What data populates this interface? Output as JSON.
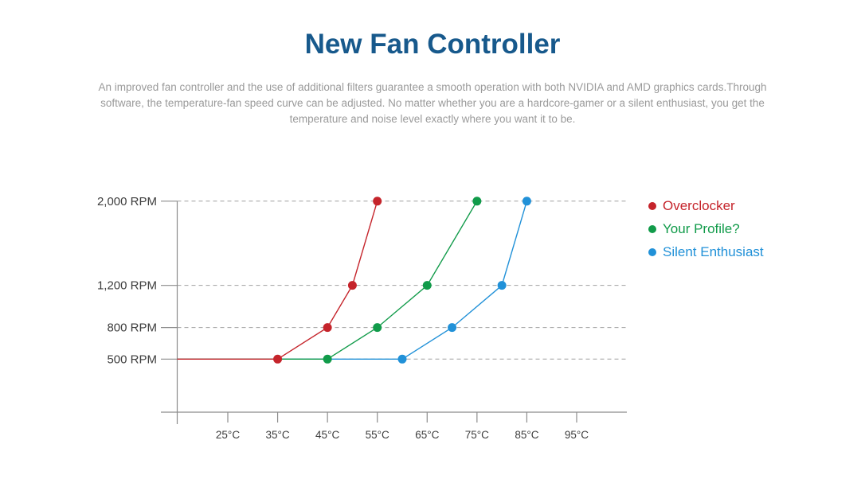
{
  "page": {
    "title": "New Fan Controller",
    "description_lines": [
      "An improved fan controller and the use of additional filters guarantee a smooth operation with both NVIDIA and AMD graphics cards.Through",
      "software, the temperature-fan speed curve can be adjusted. No matter whether you are a hardcore-gamer or a silent enthusiast, you get the",
      "temperature and noise level exactly where you want it to be."
    ]
  },
  "colors": {
    "title": "#17598c",
    "description": "#9a9a9a",
    "axis": "#8c8c8c",
    "grid": "#a0a0a0",
    "tick_label": "#3d3d3d"
  },
  "chart_data": {
    "type": "line",
    "title": "",
    "xlabel": "",
    "ylabel": "",
    "x_unit": "°C",
    "y_unit": "RPM",
    "x_tick_values": [
      25,
      35,
      45,
      55,
      65,
      75,
      85,
      95
    ],
    "x_tick_labels": [
      "25°C",
      "35°C",
      "45°C",
      "55°C",
      "65°C",
      "75°C",
      "85°C",
      "95°C"
    ],
    "y_tick_values": [
      2000,
      1200,
      800,
      500
    ],
    "y_tick_labels": [
      "2,000 RPM",
      "1,200 RPM",
      "800 RPM",
      "500 RPM"
    ],
    "ylim": [
      500,
      2000
    ],
    "grid": "horizontal-dashed",
    "baseline_rpm": 500,
    "legend_position": "right",
    "series": [
      {
        "name": "Overclocker",
        "color": "#c5242b",
        "points": [
          [
            35,
            500
          ],
          [
            45,
            800
          ],
          [
            50,
            1200
          ],
          [
            55,
            2000
          ]
        ]
      },
      {
        "name": "Your Profile?",
        "color": "#119b4a",
        "points": [
          [
            45,
            500
          ],
          [
            55,
            800
          ],
          [
            65,
            1200
          ],
          [
            75,
            2000
          ]
        ]
      },
      {
        "name": "Silent Enthusiast",
        "color": "#2191d8",
        "points": [
          [
            60,
            500
          ],
          [
            70,
            800
          ],
          [
            80,
            1200
          ],
          [
            85,
            2000
          ]
        ]
      }
    ]
  }
}
